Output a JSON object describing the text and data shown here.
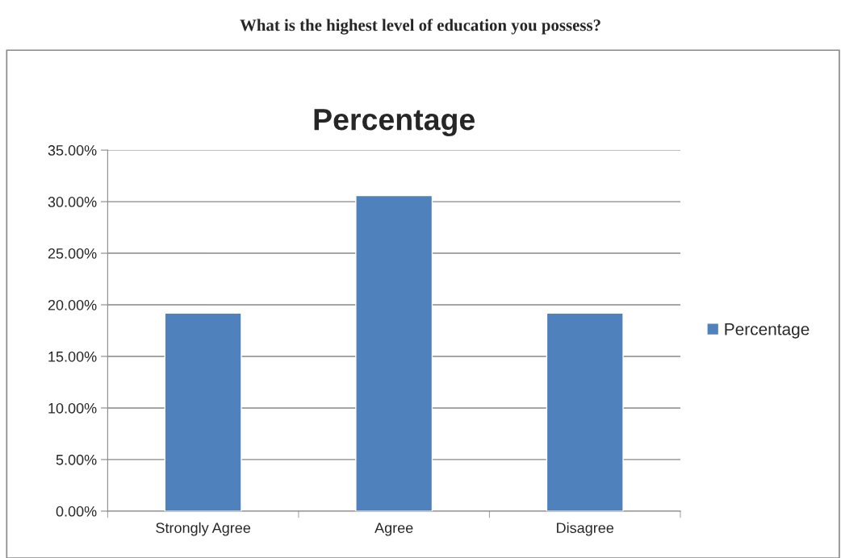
{
  "chart_data": {
    "type": "bar",
    "title": "Percentage",
    "subtitle": "What is the highest level of education you possess?",
    "categories": [
      "Strongly Agree",
      "Agree",
      "Disagree"
    ],
    "series": [
      {
        "name": "Percentage",
        "color": "#4f81bd",
        "values": [
          19.2,
          30.6,
          19.2
        ]
      }
    ],
    "ylim": [
      0,
      35
    ],
    "yticks": [
      {
        "value": 0,
        "label": "0.00%"
      },
      {
        "value": 5,
        "label": "5.00%"
      },
      {
        "value": 10,
        "label": "10.00%"
      },
      {
        "value": 15,
        "label": "15.00%"
      },
      {
        "value": 20,
        "label": "20.00%"
      },
      {
        "value": 25,
        "label": "25.00%"
      },
      {
        "value": 30,
        "label": "30.00%"
      },
      {
        "value": 35,
        "label": "35.00%"
      }
    ],
    "grid": "y",
    "legend": "right"
  }
}
